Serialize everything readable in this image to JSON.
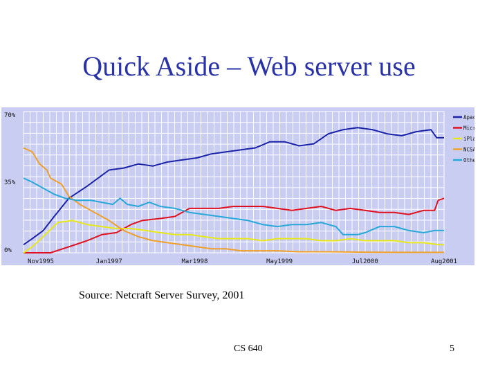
{
  "slide": {
    "title": "Quick Aside – Web server use",
    "source": "Source:  Netcraft Server Survey, 2001",
    "course": "CS 640",
    "page_number": "5"
  },
  "colors": {
    "title": "#2a33a6",
    "plot_background": "#c8cdf1",
    "grid": "#ffffff"
  },
  "chart_data": {
    "type": "line",
    "title": "",
    "xlabel": "",
    "ylabel": "",
    "ylim": [
      0,
      70
    ],
    "xlim": [
      1995.83,
      2001.58
    ],
    "grid": true,
    "legend_position": "right",
    "x_ticks": [
      {
        "label": "Nov1995",
        "value": 1995.83
      },
      {
        "label": "Jan1997",
        "value": 1997.0
      },
      {
        "label": "Mar1998",
        "value": 1998.17
      },
      {
        "label": "May1999",
        "value": 1999.33
      },
      {
        "label": "Jul2000",
        "value": 2000.5
      },
      {
        "label": "Aug2001",
        "value": 2001.58
      }
    ],
    "y_ticks": [
      {
        "label": "70%",
        "value": 70
      },
      {
        "label": "35%",
        "value": 35
      },
      {
        "label": "0%",
        "value": 0
      }
    ],
    "series": [
      {
        "name": "Apache",
        "color": "#1a22a8",
        "points": [
          [
            1995.83,
            4
          ],
          [
            1995.95,
            7
          ],
          [
            1996.1,
            11
          ],
          [
            1996.25,
            18
          ],
          [
            1996.45,
            27
          ],
          [
            1996.7,
            33
          ],
          [
            1997.0,
            41
          ],
          [
            1997.2,
            42
          ],
          [
            1997.4,
            44
          ],
          [
            1997.6,
            43
          ],
          [
            1997.8,
            45
          ],
          [
            1998.0,
            46
          ],
          [
            1998.2,
            47
          ],
          [
            1998.4,
            49
          ],
          [
            1998.6,
            50
          ],
          [
            1998.8,
            51
          ],
          [
            1999.0,
            52
          ],
          [
            1999.2,
            55
          ],
          [
            1999.4,
            55
          ],
          [
            1999.6,
            53
          ],
          [
            1999.8,
            54
          ],
          [
            2000.0,
            59
          ],
          [
            2000.2,
            61
          ],
          [
            2000.4,
            62
          ],
          [
            2000.6,
            61
          ],
          [
            2000.8,
            59
          ],
          [
            2001.0,
            58
          ],
          [
            2001.2,
            60
          ],
          [
            2001.4,
            61
          ],
          [
            2001.48,
            57
          ],
          [
            2001.58,
            57
          ]
        ]
      },
      {
        "name": "Microsoft",
        "color": "#e0101e",
        "points": [
          [
            1995.83,
            0
          ],
          [
            1996.2,
            0
          ],
          [
            1996.45,
            3
          ],
          [
            1996.7,
            6
          ],
          [
            1996.9,
            9
          ],
          [
            1997.1,
            10
          ],
          [
            1997.3,
            14
          ],
          [
            1997.45,
            16
          ],
          [
            1997.7,
            17
          ],
          [
            1997.9,
            18
          ],
          [
            1998.1,
            22
          ],
          [
            1998.3,
            22
          ],
          [
            1998.5,
            22
          ],
          [
            1998.7,
            23
          ],
          [
            1998.9,
            23
          ],
          [
            1999.1,
            23
          ],
          [
            1999.3,
            22
          ],
          [
            1999.5,
            21
          ],
          [
            1999.7,
            22
          ],
          [
            1999.9,
            23
          ],
          [
            2000.1,
            21
          ],
          [
            2000.3,
            22
          ],
          [
            2000.5,
            21
          ],
          [
            2000.7,
            20
          ],
          [
            2000.9,
            20
          ],
          [
            2001.1,
            19
          ],
          [
            2001.3,
            21
          ],
          [
            2001.45,
            21
          ],
          [
            2001.5,
            26
          ],
          [
            2001.58,
            27
          ]
        ]
      },
      {
        "name": "iPlanet",
        "color": "#e8e818",
        "points": [
          [
            1995.83,
            0
          ],
          [
            1995.95,
            3
          ],
          [
            1996.1,
            8
          ],
          [
            1996.3,
            15
          ],
          [
            1996.5,
            16
          ],
          [
            1996.7,
            14
          ],
          [
            1996.9,
            13
          ],
          [
            1997.1,
            12
          ],
          [
            1997.3,
            12
          ],
          [
            1997.5,
            11
          ],
          [
            1997.7,
            10
          ],
          [
            1997.9,
            9
          ],
          [
            1998.1,
            9
          ],
          [
            1998.3,
            8
          ],
          [
            1998.5,
            7
          ],
          [
            1998.7,
            7
          ],
          [
            1998.9,
            7
          ],
          [
            1999.1,
            6
          ],
          [
            1999.3,
            7
          ],
          [
            1999.5,
            7
          ],
          [
            1999.7,
            7
          ],
          [
            1999.9,
            6
          ],
          [
            2000.1,
            6
          ],
          [
            2000.3,
            7
          ],
          [
            2000.5,
            6
          ],
          [
            2000.7,
            6
          ],
          [
            2000.9,
            6
          ],
          [
            2001.1,
            5
          ],
          [
            2001.3,
            5
          ],
          [
            2001.5,
            4
          ],
          [
            2001.58,
            4
          ]
        ]
      },
      {
        "name": "NCSA",
        "color": "#f0a028",
        "points": [
          [
            1995.83,
            52
          ],
          [
            1995.95,
            50
          ],
          [
            1996.05,
            44
          ],
          [
            1996.15,
            41
          ],
          [
            1996.2,
            37
          ],
          [
            1996.35,
            34
          ],
          [
            1996.45,
            28
          ],
          [
            1996.6,
            24
          ],
          [
            1996.8,
            20
          ],
          [
            1997.0,
            16
          ],
          [
            1997.2,
            11
          ],
          [
            1997.4,
            8
          ],
          [
            1997.6,
            6
          ],
          [
            1997.8,
            5
          ],
          [
            1998.0,
            4
          ],
          [
            1998.2,
            3
          ],
          [
            1998.4,
            2
          ],
          [
            1998.6,
            2
          ],
          [
            1998.8,
            1
          ],
          [
            1999.0,
            1
          ],
          [
            1999.3,
            1
          ],
          [
            1999.6,
            0.5
          ],
          [
            2000.0,
            0.5
          ],
          [
            2000.5,
            0.3
          ],
          [
            2001.0,
            0.2
          ],
          [
            2001.58,
            0.2
          ]
        ]
      },
      {
        "name": "Other",
        "color": "#28a8d8",
        "points": [
          [
            1995.83,
            37
          ],
          [
            1995.95,
            35
          ],
          [
            1996.1,
            32
          ],
          [
            1996.25,
            29
          ],
          [
            1996.4,
            27
          ],
          [
            1996.55,
            26
          ],
          [
            1996.75,
            26
          ],
          [
            1996.9,
            25
          ],
          [
            1997.05,
            24
          ],
          [
            1997.15,
            27
          ],
          [
            1997.25,
            24
          ],
          [
            1997.4,
            23
          ],
          [
            1997.55,
            25
          ],
          [
            1997.7,
            23
          ],
          [
            1997.9,
            22
          ],
          [
            1998.1,
            20
          ],
          [
            1998.3,
            19
          ],
          [
            1998.5,
            18
          ],
          [
            1998.7,
            17
          ],
          [
            1998.9,
            16
          ],
          [
            1999.1,
            14
          ],
          [
            1999.3,
            13
          ],
          [
            1999.5,
            14
          ],
          [
            1999.7,
            14
          ],
          [
            1999.9,
            15
          ],
          [
            2000.1,
            13
          ],
          [
            2000.2,
            9
          ],
          [
            2000.4,
            9
          ],
          [
            2000.5,
            10
          ],
          [
            2000.7,
            13
          ],
          [
            2000.9,
            13
          ],
          [
            2001.1,
            11
          ],
          [
            2001.3,
            10
          ],
          [
            2001.45,
            11
          ],
          [
            2001.58,
            11
          ]
        ]
      }
    ]
  }
}
